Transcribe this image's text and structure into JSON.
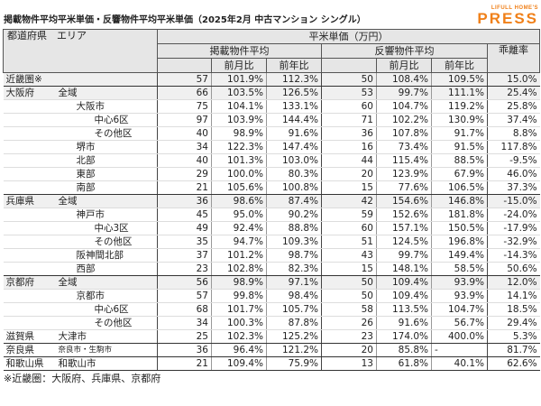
{
  "title": "掲載物件平均平米単価・反響物件平均平米単価（2025年2月 中古マンション シングル）",
  "logo": {
    "small": "LIFULL HOME'S",
    "big": "PRESS",
    "color": "#f08019"
  },
  "header": {
    "region": "都道府県　エリア",
    "unit": "平米単価（万円）",
    "listing": "掲載物件平均",
    "response": "反響物件平均",
    "gap": "乖離率",
    "mom": "前月比",
    "yoy": "前年比"
  },
  "rows": [
    {
      "pref": "近畿圏※",
      "area": "",
      "lv": 0,
      "v": [
        "57",
        "101.9%",
        "112.3%",
        "50",
        "108.4%",
        "109.5%",
        "15.0%"
      ],
      "shade": true,
      "grp": true
    },
    {
      "pref": "大阪府",
      "area": "全域",
      "lv": 1,
      "v": [
        "66",
        "103.5%",
        "126.5%",
        "53",
        "99.7%",
        "111.1%",
        "25.4%"
      ],
      "shade": true
    },
    {
      "pref": "",
      "area": "大阪市",
      "lv": 2,
      "v": [
        "75",
        "104.1%",
        "133.1%",
        "60",
        "104.7%",
        "119.2%",
        "25.8%"
      ]
    },
    {
      "pref": "",
      "area": "中心6区",
      "lv": 3,
      "v": [
        "97",
        "103.9%",
        "144.4%",
        "71",
        "102.2%",
        "130.9%",
        "37.4%"
      ]
    },
    {
      "pref": "",
      "area": "その他区",
      "lv": 3,
      "v": [
        "40",
        "98.9%",
        "91.6%",
        "36",
        "107.8%",
        "91.7%",
        "8.8%"
      ]
    },
    {
      "pref": "",
      "area": "堺市",
      "lv": 2,
      "v": [
        "34",
        "122.3%",
        "147.4%",
        "16",
        "73.4%",
        "91.5%",
        "117.8%"
      ]
    },
    {
      "pref": "",
      "area": "北部",
      "lv": 2,
      "v": [
        "40",
        "101.3%",
        "103.0%",
        "44",
        "115.4%",
        "88.5%",
        "-9.5%"
      ]
    },
    {
      "pref": "",
      "area": "東部",
      "lv": 2,
      "v": [
        "29",
        "100.0%",
        "80.3%",
        "20",
        "123.9%",
        "67.9%",
        "46.0%"
      ]
    },
    {
      "pref": "",
      "area": "南部",
      "lv": 2,
      "v": [
        "21",
        "105.6%",
        "100.8%",
        "15",
        "77.6%",
        "106.5%",
        "37.3%"
      ],
      "grp": true
    },
    {
      "pref": "兵庫県",
      "area": "全域",
      "lv": 1,
      "v": [
        "36",
        "98.6%",
        "87.4%",
        "42",
        "154.6%",
        "146.8%",
        "-15.0%"
      ],
      "shade": true
    },
    {
      "pref": "",
      "area": "神戸市",
      "lv": 2,
      "v": [
        "45",
        "95.0%",
        "90.2%",
        "59",
        "152.6%",
        "181.8%",
        "-24.0%"
      ]
    },
    {
      "pref": "",
      "area": "中心3区",
      "lv": 3,
      "v": [
        "49",
        "92.4%",
        "88.8%",
        "60",
        "157.1%",
        "150.5%",
        "-17.9%"
      ]
    },
    {
      "pref": "",
      "area": "その他区",
      "lv": 3,
      "v": [
        "35",
        "94.7%",
        "109.3%",
        "51",
        "124.5%",
        "196.8%",
        "-32.9%"
      ]
    },
    {
      "pref": "",
      "area": "阪神間北部",
      "lv": 2,
      "v": [
        "37",
        "101.2%",
        "98.7%",
        "43",
        "99.7%",
        "149.4%",
        "-14.3%"
      ]
    },
    {
      "pref": "",
      "area": "西部",
      "lv": 2,
      "v": [
        "23",
        "102.8%",
        "82.3%",
        "15",
        "148.1%",
        "58.5%",
        "50.6%"
      ],
      "grp": true
    },
    {
      "pref": "京都府",
      "area": "全域",
      "lv": 1,
      "v": [
        "56",
        "98.9%",
        "97.1%",
        "50",
        "109.4%",
        "93.9%",
        "12.0%"
      ],
      "shade": true
    },
    {
      "pref": "",
      "area": "京都市",
      "lv": 2,
      "v": [
        "57",
        "99.8%",
        "98.4%",
        "50",
        "109.4%",
        "93.9%",
        "14.1%"
      ]
    },
    {
      "pref": "",
      "area": "中心6区",
      "lv": 3,
      "v": [
        "68",
        "101.7%",
        "105.7%",
        "58",
        "113.5%",
        "104.7%",
        "18.5%"
      ]
    },
    {
      "pref": "",
      "area": "その他区",
      "lv": 3,
      "v": [
        "34",
        "100.3%",
        "87.8%",
        "26",
        "91.6%",
        "56.7%",
        "29.4%"
      ]
    },
    {
      "pref": "滋賀県",
      "area": "大津市",
      "lv": 1,
      "v": [
        "25",
        "102.3%",
        "125.2%",
        "23",
        "174.0%",
        "400.0%",
        "5.3%"
      ],
      "grp": true
    },
    {
      "pref": "奈良県",
      "area": "奈良市・生駒市",
      "lv": 1,
      "small": true,
      "v": [
        "36",
        "96.4%",
        "121.2%",
        "20",
        "85.8%",
        "-",
        "81.7%"
      ],
      "grp": true
    },
    {
      "pref": "和歌山県",
      "area": "和歌山市",
      "lv": 1,
      "v": [
        "21",
        "109.4%",
        "75.9%",
        "13",
        "61.8%",
        "40.1%",
        "62.6%"
      ],
      "grp": true
    }
  ],
  "footnote": "※近畿圏：大阪府、兵庫県、京都府"
}
